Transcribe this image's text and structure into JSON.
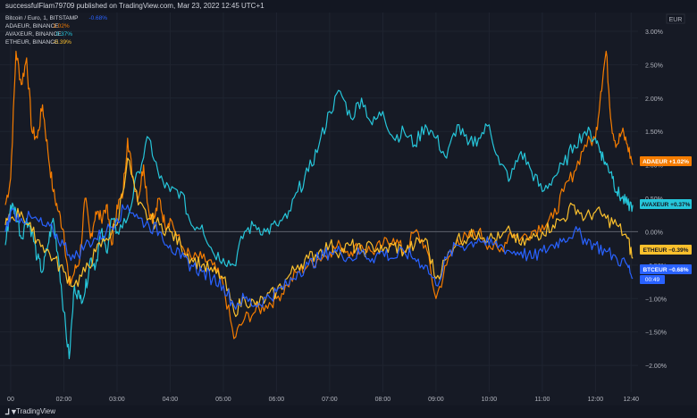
{
  "header": {
    "publisher_text": "successfulFlam79709 published on TradingView.com, Mar 23, 2022 12:45 UTC+1"
  },
  "footer": {
    "logo_glyph": "⅃▼",
    "brand": "TradingView"
  },
  "currency_box": "EUR",
  "colors": {
    "btc": "#2962ff",
    "ada": "#f57c00",
    "avax": "#26c6da",
    "eth": "#fbc02d",
    "bg": "#161a25",
    "grid": "#1f2430",
    "text": "#b2b5be"
  },
  "legend": [
    {
      "name": "Bitcoin / Euro, 1, BITSTAMP",
      "change": "-0.68%"
    },
    {
      "name": "ADAEUR, BINANCE",
      "change": "1.02%"
    },
    {
      "name": "AVAXEUR, BINANCE",
      "change": "0.37%"
    },
    {
      "name": "ETHEUR, BINANCE",
      "change": "-0.39%"
    }
  ],
  "price_labels": {
    "ada": "ADAEUR  +1.02%",
    "avax": "AVAXEUR  +0.37%",
    "eth": "ETHEUR  −0.39%",
    "btc": "BTCEUR  −0.68%",
    "btc_timer": "00:49"
  },
  "chart_data": {
    "type": "line",
    "yunit": "%",
    "ylim": [
      -2.4,
      3.2
    ],
    "ytick_labels": [
      "3.00%",
      "2.50%",
      "2.00%",
      "1.50%",
      "1.00%",
      "0.50%",
      "0.00%",
      "−0.50%",
      "−1.00%",
      "−1.50%",
      "−2.00%"
    ],
    "ytick_values": [
      3,
      2.5,
      2,
      1.5,
      1,
      0.5,
      0,
      -0.5,
      -1,
      -1.5,
      -2
    ],
    "xtick_labels": [
      "00",
      "02:00",
      "03:00",
      "04:00",
      "05:00",
      "06:00",
      "07:00",
      "08:00",
      "09:00",
      "10:00",
      "11:00",
      "12:00",
      "12:40"
    ],
    "xtick_values": [
      1,
      2,
      3,
      4,
      5,
      6,
      7,
      8,
      9,
      10,
      11,
      12,
      12.67
    ],
    "xlim": [
      0.9,
      12.8
    ],
    "series": [
      {
        "name": "ADAEUR",
        "key": "ada",
        "x": [
          0.9,
          1.0,
          1.1,
          1.2,
          1.3,
          1.4,
          1.5,
          1.6,
          1.7,
          1.8,
          1.9,
          2.0,
          2.1,
          2.2,
          2.3,
          2.4,
          2.5,
          2.6,
          2.7,
          2.8,
          2.9,
          3.0,
          3.1,
          3.2,
          3.3,
          3.4,
          3.5,
          3.6,
          3.7,
          3.8,
          3.9,
          4.0,
          4.2,
          4.4,
          4.6,
          4.8,
          5.0,
          5.2,
          5.4,
          5.6,
          5.8,
          6.0,
          6.2,
          6.4,
          6.6,
          6.8,
          7.0,
          7.2,
          7.4,
          7.6,
          7.8,
          8.0,
          8.2,
          8.4,
          8.6,
          8.8,
          9.0,
          9.2,
          9.4,
          9.6,
          9.8,
          10.0,
          10.2,
          10.4,
          10.6,
          10.8,
          11.0,
          11.2,
          11.4,
          11.6,
          11.8,
          12.0,
          12.1,
          12.2,
          12.3,
          12.4,
          12.5,
          12.6,
          12.7
        ],
        "y": [
          0.4,
          0.8,
          2.7,
          2.2,
          2.6,
          1.5,
          1.4,
          1.9,
          1.2,
          0.6,
          0.3,
          0.0,
          -0.8,
          -0.6,
          -0.4,
          0.5,
          -0.1,
          0.3,
          0.2,
          0.4,
          -0.2,
          0.4,
          0.5,
          1.4,
          0.8,
          0.5,
          1.0,
          0.3,
          0.2,
          0.5,
          0.1,
          0.2,
          -0.2,
          -0.4,
          -0.4,
          -0.5,
          -0.8,
          -1.6,
          -1.3,
          -1.2,
          -1.1,
          -1.0,
          -0.8,
          -0.6,
          -0.5,
          -0.4,
          -0.3,
          -0.2,
          -0.3,
          -0.2,
          -0.3,
          -0.2,
          -0.1,
          -0.3,
          0.0,
          -0.2,
          -1.0,
          -0.5,
          -0.1,
          -0.1,
          0.0,
          -0.2,
          -0.3,
          0.0,
          -0.1,
          0.0,
          0.1,
          0.2,
          0.6,
          0.9,
          1.3,
          1.4,
          2.1,
          2.7,
          1.6,
          1.3,
          1.5,
          1.3,
          1.0
        ]
      },
      {
        "name": "AVAXEUR",
        "key": "avax",
        "x": [
          0.9,
          1.0,
          1.1,
          1.2,
          1.3,
          1.4,
          1.5,
          1.6,
          1.7,
          1.8,
          1.9,
          2.0,
          2.1,
          2.2,
          2.3,
          2.4,
          2.5,
          2.6,
          2.7,
          2.8,
          2.9,
          3.0,
          3.2,
          3.4,
          3.6,
          3.8,
          4.0,
          4.2,
          4.4,
          4.6,
          4.8,
          5.0,
          5.2,
          5.4,
          5.6,
          5.8,
          6.0,
          6.2,
          6.4,
          6.6,
          6.8,
          7.0,
          7.2,
          7.4,
          7.6,
          7.8,
          8.0,
          8.2,
          8.4,
          8.6,
          8.8,
          9.0,
          9.2,
          9.4,
          9.6,
          9.8,
          10.0,
          10.2,
          10.4,
          10.6,
          10.8,
          11.0,
          11.2,
          11.4,
          11.6,
          11.8,
          12.0,
          12.1,
          12.2,
          12.3,
          12.4,
          12.5,
          12.6,
          12.7
        ],
        "y": [
          -0.2,
          0.4,
          0.3,
          -0.1,
          0.2,
          0.0,
          -0.4,
          -0.6,
          -0.2,
          0.2,
          -0.4,
          -1.2,
          -1.9,
          -0.8,
          -1.0,
          -0.9,
          -0.4,
          -0.5,
          0.0,
          -0.3,
          0.2,
          0.0,
          0.2,
          0.9,
          1.4,
          0.8,
          0.6,
          0.6,
          0.1,
          0.1,
          -0.3,
          -0.4,
          -0.5,
          0.0,
          0.1,
          0.0,
          0.1,
          0.2,
          0.6,
          0.9,
          1.3,
          1.8,
          2.1,
          1.7,
          2.0,
          1.6,
          1.8,
          1.4,
          1.5,
          1.3,
          1.6,
          1.4,
          1.1,
          1.6,
          1.3,
          1.4,
          1.6,
          1.0,
          0.8,
          1.2,
          0.9,
          0.6,
          0.8,
          1.0,
          1.3,
          1.5,
          1.4,
          1.2,
          1.0,
          0.9,
          0.6,
          0.5,
          0.4,
          0.4
        ]
      },
      {
        "name": "ETHEUR",
        "key": "eth",
        "x": [
          0.9,
          1.0,
          1.2,
          1.4,
          1.6,
          1.8,
          2.0,
          2.2,
          2.4,
          2.6,
          2.8,
          3.0,
          3.2,
          3.4,
          3.6,
          3.8,
          4.0,
          4.2,
          4.4,
          4.6,
          4.8,
          5.0,
          5.2,
          5.4,
          5.6,
          5.8,
          6.0,
          6.2,
          6.4,
          6.6,
          6.8,
          7.0,
          7.2,
          7.4,
          7.6,
          7.8,
          8.0,
          8.2,
          8.4,
          8.6,
          8.8,
          9.0,
          9.2,
          9.4,
          9.6,
          9.8,
          10.0,
          10.2,
          10.4,
          10.6,
          10.8,
          11.0,
          11.2,
          11.4,
          11.6,
          11.8,
          12.0,
          12.2,
          12.4,
          12.6,
          12.7
        ],
        "y": [
          0.1,
          0.2,
          0.3,
          0.0,
          -0.2,
          -0.4,
          -0.6,
          -0.8,
          -0.6,
          -0.3,
          -0.1,
          0.1,
          1.1,
          0.4,
          0.2,
          0.1,
          0.0,
          -0.2,
          -0.4,
          -0.5,
          -0.6,
          -0.7,
          -1.2,
          -1.0,
          -1.1,
          -1.0,
          -0.9,
          -0.7,
          -0.5,
          -0.4,
          -0.3,
          -0.2,
          -0.3,
          -0.2,
          -0.3,
          -0.2,
          -0.3,
          -0.2,
          -0.3,
          -0.2,
          -0.1,
          -0.7,
          -0.4,
          -0.1,
          -0.1,
          0.0,
          -0.1,
          -0.1,
          0.0,
          -0.2,
          -0.1,
          0.0,
          0.1,
          0.2,
          0.4,
          0.2,
          0.3,
          0.2,
          0.1,
          -0.1,
          -0.4
        ]
      },
      {
        "name": "BTCEUR",
        "key": "btc",
        "x": [
          0.9,
          1.0,
          1.2,
          1.4,
          1.6,
          1.8,
          2.0,
          2.2,
          2.4,
          2.6,
          2.8,
          3.0,
          3.2,
          3.4,
          3.6,
          3.8,
          4.0,
          4.2,
          4.4,
          4.6,
          4.8,
          5.0,
          5.2,
          5.4,
          5.6,
          5.8,
          6.0,
          6.2,
          6.4,
          6.6,
          6.8,
          7.0,
          7.2,
          7.4,
          7.6,
          7.8,
          8.0,
          8.2,
          8.4,
          8.6,
          8.8,
          9.0,
          9.2,
          9.4,
          9.6,
          9.8,
          10.0,
          10.2,
          10.4,
          10.6,
          10.8,
          11.0,
          11.2,
          11.4,
          11.6,
          11.8,
          12.0,
          12.2,
          12.4,
          12.6,
          12.7
        ],
        "y": [
          0.0,
          0.3,
          0.2,
          0.2,
          0.1,
          0.0,
          -0.2,
          -0.4,
          -0.2,
          -0.1,
          0.0,
          0.2,
          0.4,
          0.2,
          0.1,
          0.0,
          -0.2,
          -0.4,
          -0.5,
          -0.6,
          -0.7,
          -0.8,
          -1.1,
          -1.0,
          -1.1,
          -1.0,
          -0.9,
          -0.8,
          -0.6,
          -0.5,
          -0.4,
          -0.3,
          -0.3,
          -0.4,
          -0.3,
          -0.4,
          -0.3,
          -0.4,
          -0.3,
          -0.4,
          -0.5,
          -0.8,
          -0.4,
          -0.2,
          -0.2,
          -0.1,
          -0.2,
          -0.2,
          -0.3,
          -0.3,
          -0.4,
          -0.3,
          -0.2,
          -0.1,
          0.0,
          -0.1,
          -0.2,
          -0.3,
          -0.4,
          -0.5,
          -0.7
        ]
      }
    ]
  }
}
